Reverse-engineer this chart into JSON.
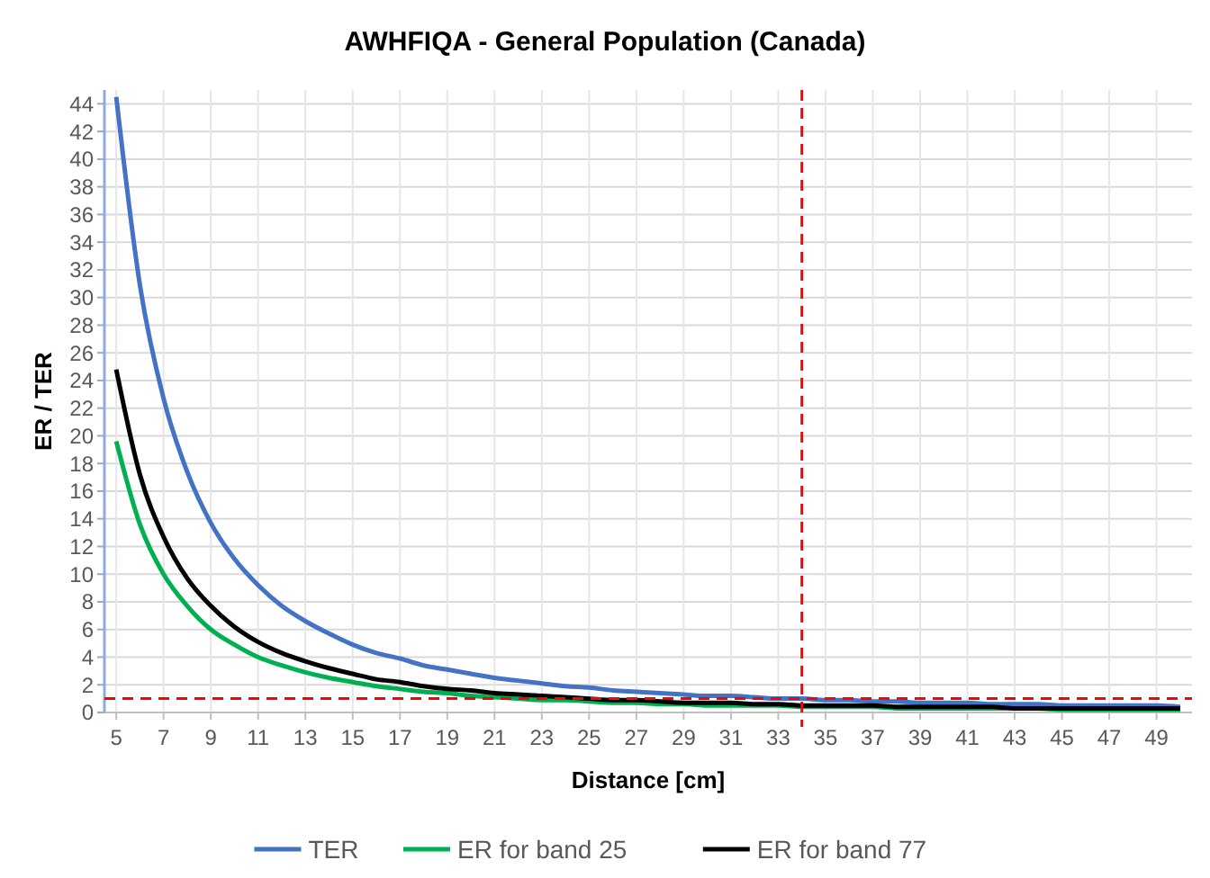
{
  "chart_data": {
    "type": "line",
    "title": "AWHFIQA - General Population (Canada)",
    "xlabel": "Distance [cm]",
    "ylabel": "ER / TER",
    "x": [
      5,
      6,
      7,
      8,
      9,
      10,
      11,
      12,
      13,
      14,
      15,
      16,
      17,
      18,
      19,
      20,
      21,
      22,
      23,
      24,
      25,
      26,
      27,
      28,
      29,
      30,
      31,
      32,
      33,
      34,
      35,
      36,
      37,
      38,
      39,
      40,
      41,
      42,
      43,
      44,
      45,
      46,
      47,
      48,
      49,
      50
    ],
    "series": [
      {
        "name": "TER",
        "color": "#4472c4",
        "values": [
          44.5,
          30.9,
          22.7,
          17.4,
          13.7,
          11.1,
          9.2,
          7.7,
          6.6,
          5.7,
          4.9,
          4.3,
          3.9,
          3.4,
          3.1,
          2.8,
          2.5,
          2.3,
          2.1,
          1.9,
          1.8,
          1.6,
          1.5,
          1.4,
          1.3,
          1.2,
          1.2,
          1.1,
          1,
          1,
          0.9,
          0.9,
          0.8,
          0.8,
          0.7,
          0.7,
          0.7,
          0.6,
          0.6,
          0.6,
          0.5,
          0.5,
          0.5,
          0.5,
          0.5,
          0.4
        ]
      },
      {
        "name": "ER for band 25",
        "color": "#00b050",
        "values": [
          19.6,
          13.6,
          10,
          7.7,
          6,
          4.9,
          4,
          3.4,
          2.9,
          2.5,
          2.2,
          1.9,
          1.7,
          1.5,
          1.4,
          1.2,
          1.1,
          1,
          0.9,
          0.9,
          0.8,
          0.7,
          0.7,
          0.6,
          0.6,
          0.5,
          0.5,
          0.5,
          0.5,
          0.4,
          0.4,
          0.4,
          0.4,
          0.3,
          0.3,
          0.3,
          0.3,
          0.3,
          0.3,
          0.3,
          0.2,
          0.2,
          0.2,
          0.2,
          0.2,
          0.2
        ]
      },
      {
        "name": "ER for band 77",
        "color": "#000000",
        "values": [
          24.8,
          17.2,
          12.7,
          9.7,
          7.7,
          6.2,
          5.1,
          4.3,
          3.7,
          3.2,
          2.8,
          2.4,
          2.2,
          1.9,
          1.7,
          1.6,
          1.4,
          1.3,
          1.2,
          1.1,
          1,
          0.9,
          0.9,
          0.8,
          0.7,
          0.7,
          0.7,
          0.6,
          0.6,
          0.5,
          0.5,
          0.5,
          0.5,
          0.4,
          0.4,
          0.4,
          0.4,
          0.4,
          0.3,
          0.3,
          0.3,
          0.3,
          0.3,
          0.3,
          0.3,
          0.3
        ]
      }
    ],
    "xlim": [
      4.5,
      50.5
    ],
    "xticks": [
      5,
      7,
      9,
      11,
      13,
      15,
      17,
      19,
      21,
      23,
      25,
      27,
      29,
      31,
      33,
      35,
      37,
      39,
      41,
      43,
      45,
      47,
      49
    ],
    "ylim": [
      0,
      45
    ],
    "yticks": [
      0,
      2,
      4,
      6,
      8,
      10,
      12,
      14,
      16,
      18,
      20,
      22,
      24,
      26,
      28,
      30,
      32,
      34,
      36,
      38,
      40,
      42,
      44
    ],
    "ref_lines": [
      {
        "axis": "y",
        "value": 1,
        "color": "#ff0000",
        "line_style": "dashed"
      },
      {
        "axis": "x",
        "value": 34,
        "color": "#ff0000",
        "line_style": "dashed"
      }
    ],
    "grid": true,
    "legend": "bottom",
    "marker": "none",
    "line_style": "solid"
  }
}
